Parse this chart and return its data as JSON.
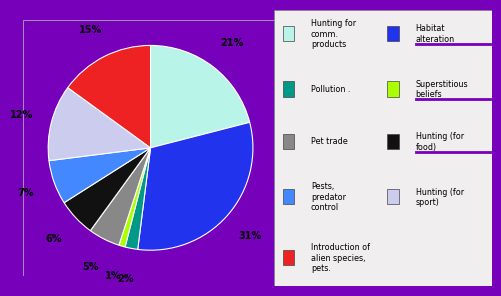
{
  "values": [
    21,
    31,
    2,
    1,
    5,
    6,
    7,
    12,
    15
  ],
  "colors": [
    "#b8f5e8",
    "#2233ee",
    "#009988",
    "#aaff00",
    "#888888",
    "#111111",
    "#4488ff",
    "#ccccee",
    "#ee2222"
  ],
  "pct_labels": [
    "21%",
    "31%",
    "2%",
    "1%",
    "5%",
    "6%",
    "7%",
    "12%",
    "15%"
  ],
  "legend_rows": [
    {
      "label": "Hunting for\ncomm.\nproducts",
      "color": "#b8f5e8",
      "label2": "Habitat\nalteration",
      "color2": "#2233ee"
    },
    {
      "label": "Pollution .",
      "color": "#009988",
      "label2": "Superstitious\nbeliefs",
      "color2": "#aaff00"
    },
    {
      "label": "Pet trade",
      "color": "#888888",
      "label2": "Hunting (for\nfood)",
      "color2": "#111111"
    },
    {
      "label": "Pests,\npredator\ncontrol",
      "color": "#4488ff",
      "label2": "Hunting (for\nsport)",
      "color2": "#ccccee"
    },
    {
      "label": "Introduction of\nalien species,\npets.",
      "color": "#ee2222",
      "label2": null,
      "color2": null
    }
  ],
  "background_color": "#7700bb",
  "legend_bg": "#f0eeee",
  "box_color": "#aaaaaa",
  "startangle": 90
}
